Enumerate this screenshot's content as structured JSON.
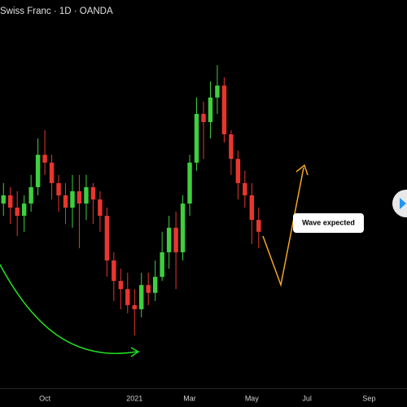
{
  "chart_data": {
    "type": "candlestick",
    "title": "Swiss Franc · 1D · OANDA",
    "annotation": "Wave expected",
    "categories": [
      null,
      null,
      null,
      null,
      null,
      null,
      "Oct",
      null,
      null,
      null,
      null,
      null,
      null,
      null,
      null,
      null,
      null,
      null,
      null,
      "2021",
      null,
      null,
      null,
      null,
      null,
      null,
      null,
      "Mar",
      null,
      null,
      null,
      null,
      null,
      null,
      null,
      null,
      "May",
      null,
      null,
      null,
      null,
      null,
      null,
      null,
      "Jul",
      null,
      null,
      null,
      null,
      null,
      null,
      null,
      null,
      "Sep",
      null,
      null,
      null,
      null,
      null
    ],
    "open": [
      0.9103,
      0.9125,
      0.9092,
      0.907,
      0.9103,
      0.9147,
      0.9234,
      0.9213,
      0.9158,
      0.9125,
      0.9092,
      0.9136,
      0.9103,
      0.9147,
      0.9114,
      0.907,
      0.895,
      0.8895,
      0.8873,
      0.883,
      0.8819,
      0.8884,
      0.8863,
      0.8906,
      0.8972,
      0.9038,
      0.8972,
      0.9103,
      0.9213,
      0.9344,
      0.9322,
      0.9388,
      0.942,
      0.9289,
      0.9223,
      0.9158,
      0.9125,
      0.9059,
      null,
      null,
      null,
      null,
      null,
      null,
      null,
      null,
      null,
      null,
      null,
      null,
      null,
      null,
      null,
      null,
      null,
      null,
      null,
      null,
      null
    ],
    "high": [
      0.9158,
      0.9147,
      0.9136,
      0.9125,
      0.918,
      0.9278,
      0.93,
      0.9234,
      0.918,
      0.9158,
      0.918,
      0.918,
      0.918,
      0.9158,
      0.9136,
      0.9092,
      0.8972,
      0.8928,
      0.8917,
      0.8873,
      0.8917,
      0.8917,
      0.895,
      0.9027,
      0.907,
      0.9081,
      0.9125,
      0.9234,
      0.9388,
      0.9377,
      0.9431,
      0.9475,
      0.9442,
      0.93,
      0.9245,
      0.9191,
      0.9158,
      0.9092,
      null,
      null,
      null,
      null,
      null,
      null,
      null,
      null,
      null,
      null,
      null,
      null,
      null,
      null,
      null,
      null,
      null,
      null,
      null,
      null,
      null
    ],
    "low": [
      0.907,
      0.9048,
      0.9016,
      0.9027,
      0.9081,
      0.9125,
      0.918,
      0.9114,
      0.9081,
      0.9048,
      0.9038,
      0.8983,
      0.9059,
      0.9048,
      0.9027,
      0.8906,
      0.8841,
      0.8819,
      0.8808,
      0.8749,
      0.8797,
      0.883,
      0.8841,
      0.8895,
      0.8928,
      0.8873,
      0.895,
      0.907,
      0.9191,
      0.9223,
      0.9278,
      0.9344,
      0.9267,
      0.918,
      0.9114,
      0.9092,
      0.8994,
      0.8983,
      null,
      null,
      null,
      null,
      null,
      null,
      null,
      null,
      null,
      null,
      null,
      null,
      null,
      null,
      null,
      null,
      null,
      null,
      null,
      null,
      null
    ],
    "close": [
      0.9125,
      0.9092,
      0.907,
      0.9103,
      0.9147,
      0.9234,
      0.9213,
      0.9158,
      0.9125,
      0.9092,
      0.9136,
      0.9103,
      0.9147,
      0.9114,
      0.907,
      0.895,
      0.8895,
      0.8873,
      0.883,
      0.8819,
      0.8884,
      0.8863,
      0.8906,
      0.8972,
      0.9038,
      0.8972,
      0.9103,
      0.9213,
      0.9344,
      0.9322,
      0.9388,
      0.942,
      0.9289,
      0.9223,
      0.9158,
      0.9125,
      0.9059,
      0.9027,
      null,
      null,
      null,
      null,
      null,
      null,
      null,
      null,
      null,
      null,
      null,
      null,
      null,
      null,
      null,
      null,
      null,
      null,
      null,
      null,
      null
    ],
    "up_color": "#3fcf3f",
    "down_color": "#e8362e",
    "ylim": [
      0.86,
      0.965
    ]
  }
}
